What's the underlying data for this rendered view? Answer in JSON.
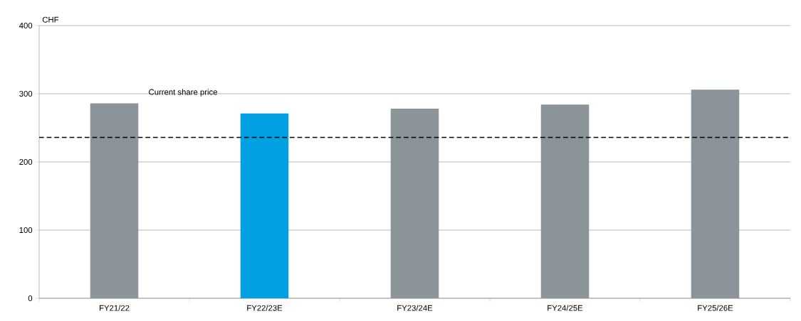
{
  "chart_data": {
    "type": "bar",
    "ylabel": "CHF",
    "categories": [
      "FY21/22",
      "FY22/23E",
      "FY23/24E",
      "FY24/25E",
      "FY25/26E"
    ],
    "values": [
      286,
      271,
      278,
      284,
      306
    ],
    "colors": [
      "#8a9499",
      "#00a0e3",
      "#8a9499",
      "#8a9499",
      "#8a9499"
    ],
    "ylim": [
      0,
      400
    ],
    "yticks": [
      0,
      100,
      200,
      300,
      400
    ],
    "grid": "y",
    "ref_lines": [
      {
        "axis": "y",
        "value": 236,
        "label": "Current share price",
        "color": "#000000",
        "line_style": "dashed"
      }
    ]
  }
}
